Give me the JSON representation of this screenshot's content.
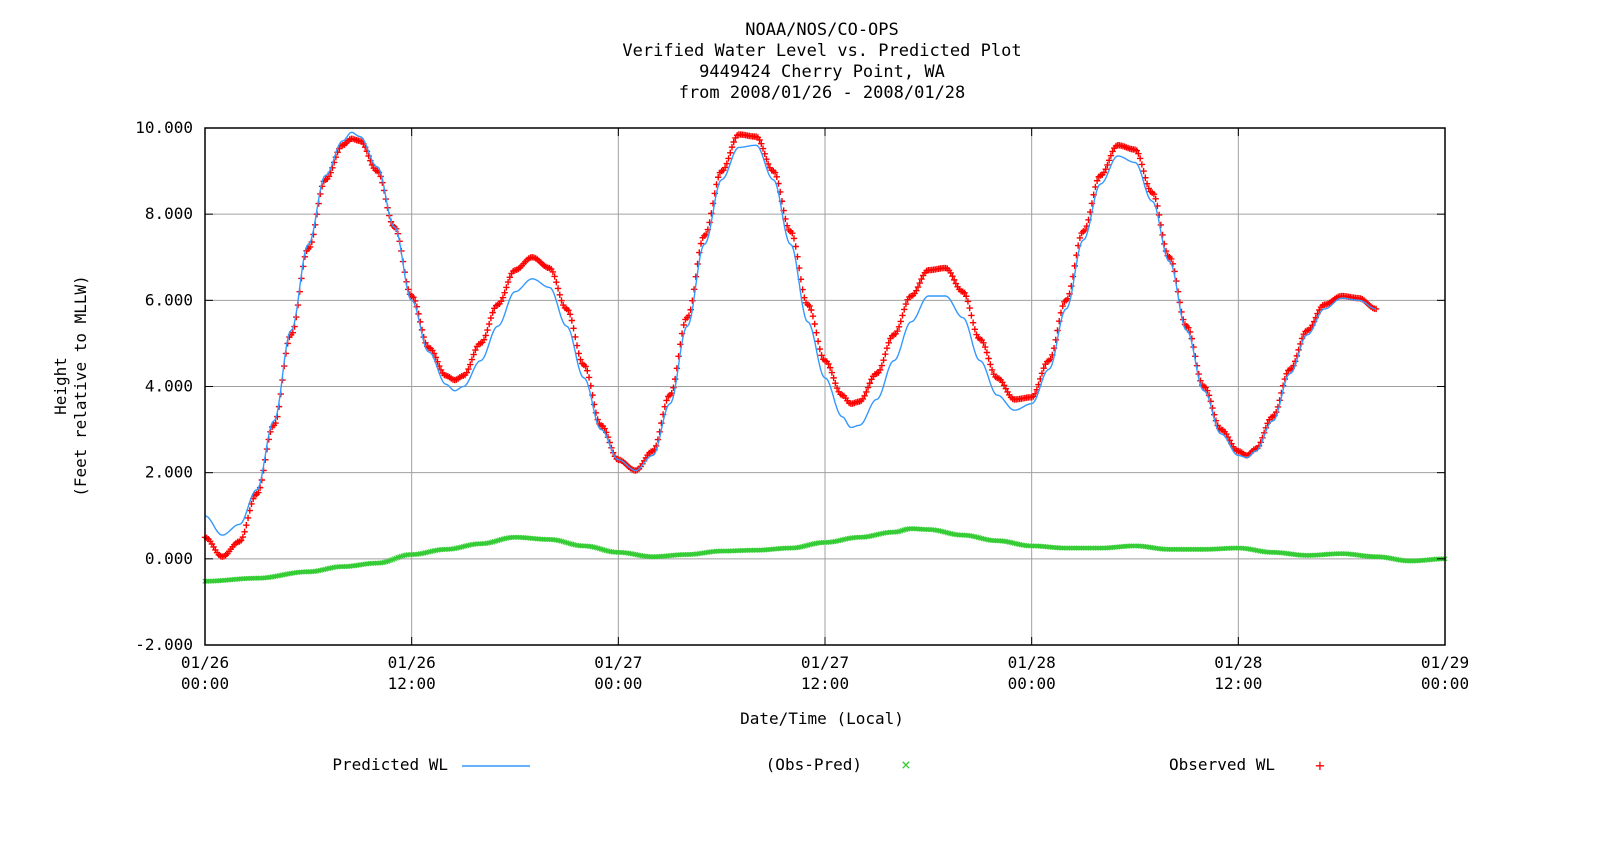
{
  "chart_data": {
    "type": "line",
    "title_lines": [
      "NOAA/NOS/CO-OPS",
      "Verified  Water Level vs. Predicted Plot",
      "9449424 Cherry Point, WA",
      "from 2008/01/26 - 2008/01/28"
    ],
    "ylabel_lines": [
      "Height",
      "(Feet relative to MLLW)"
    ],
    "xlabel": "Date/Time (Local)",
    "ylim": [
      -2,
      10
    ],
    "yticks": [
      -2,
      0,
      2,
      4,
      6,
      8,
      10
    ],
    "ytick_labels": [
      "-2.000",
      "0.000",
      "2.000",
      "4.000",
      "6.000",
      "8.000",
      "10.000"
    ],
    "xlim": [
      "2008-01-26 00:00",
      "2008-01-29 00:00"
    ],
    "xticks": [
      {
        "t": "2008-01-26 00:00",
        "date": "01/26",
        "time": "00:00"
      },
      {
        "t": "2008-01-26 12:00",
        "date": "01/26",
        "time": "12:00"
      },
      {
        "t": "2008-01-27 00:00",
        "date": "01/27",
        "time": "00:00"
      },
      {
        "t": "2008-01-27 12:00",
        "date": "01/27",
        "time": "12:00"
      },
      {
        "t": "2008-01-28 00:00",
        "date": "01/28",
        "time": "00:00"
      },
      {
        "t": "2008-01-28 12:00",
        "date": "01/28",
        "time": "12:00"
      },
      {
        "t": "2008-01-29 00:00",
        "date": "01/29",
        "time": "00:00"
      }
    ],
    "grid": true,
    "legend_position": "bottom",
    "series": [
      {
        "name": "Predicted WL",
        "style": "line",
        "color": "#3399ff",
        "points": [
          [
            "2008-01-26 00:00",
            1.0
          ],
          [
            "2008-01-26 01:00",
            0.55
          ],
          [
            "2008-01-26 02:00",
            0.8
          ],
          [
            "2008-01-26 03:00",
            1.6
          ],
          [
            "2008-01-26 04:00",
            3.2
          ],
          [
            "2008-01-26 05:00",
            5.3
          ],
          [
            "2008-01-26 06:00",
            7.3
          ],
          [
            "2008-01-26 07:00",
            8.9
          ],
          [
            "2008-01-26 08:00",
            9.7
          ],
          [
            "2008-01-26 08:30",
            9.9
          ],
          [
            "2008-01-26 09:00",
            9.8
          ],
          [
            "2008-01-26 10:00",
            9.1
          ],
          [
            "2008-01-26 11:00",
            7.7
          ],
          [
            "2008-01-26 12:00",
            6.0
          ],
          [
            "2008-01-26 13:00",
            4.8
          ],
          [
            "2008-01-26 14:00",
            4.05
          ],
          [
            "2008-01-26 14:30",
            3.9
          ],
          [
            "2008-01-26 15:00",
            4.0
          ],
          [
            "2008-01-26 16:00",
            4.6
          ],
          [
            "2008-01-26 17:00",
            5.4
          ],
          [
            "2008-01-26 18:00",
            6.2
          ],
          [
            "2008-01-26 19:00",
            6.5
          ],
          [
            "2008-01-26 20:00",
            6.3
          ],
          [
            "2008-01-26 21:00",
            5.4
          ],
          [
            "2008-01-26 22:00",
            4.2
          ],
          [
            "2008-01-26 23:00",
            3.0
          ],
          [
            "2008-01-27 00:00",
            2.3
          ],
          [
            "2008-01-27 01:00",
            2.05
          ],
          [
            "2008-01-27 02:00",
            2.4
          ],
          [
            "2008-01-27 03:00",
            3.6
          ],
          [
            "2008-01-27 04:00",
            5.4
          ],
          [
            "2008-01-27 05:00",
            7.3
          ],
          [
            "2008-01-27 06:00",
            8.8
          ],
          [
            "2008-01-27 07:00",
            9.55
          ],
          [
            "2008-01-27 08:00",
            9.6
          ],
          [
            "2008-01-27 09:00",
            8.8
          ],
          [
            "2008-01-27 10:00",
            7.3
          ],
          [
            "2008-01-27 11:00",
            5.5
          ],
          [
            "2008-01-27 12:00",
            4.2
          ],
          [
            "2008-01-27 13:00",
            3.3
          ],
          [
            "2008-01-27 13:30",
            3.05
          ],
          [
            "2008-01-27 14:00",
            3.1
          ],
          [
            "2008-01-27 15:00",
            3.7
          ],
          [
            "2008-01-27 16:00",
            4.6
          ],
          [
            "2008-01-27 17:00",
            5.5
          ],
          [
            "2008-01-27 18:00",
            6.1
          ],
          [
            "2008-01-27 19:00",
            6.1
          ],
          [
            "2008-01-27 20:00",
            5.6
          ],
          [
            "2008-01-27 21:00",
            4.6
          ],
          [
            "2008-01-27 22:00",
            3.8
          ],
          [
            "2008-01-27 23:00",
            3.45
          ],
          [
            "2008-01-28 00:00",
            3.6
          ],
          [
            "2008-01-28 01:00",
            4.4
          ],
          [
            "2008-01-28 02:00",
            5.8
          ],
          [
            "2008-01-28 03:00",
            7.4
          ],
          [
            "2008-01-28 04:00",
            8.7
          ],
          [
            "2008-01-28 05:00",
            9.35
          ],
          [
            "2008-01-28 06:00",
            9.2
          ],
          [
            "2008-01-28 07:00",
            8.3
          ],
          [
            "2008-01-28 08:00",
            6.9
          ],
          [
            "2008-01-28 09:00",
            5.3
          ],
          [
            "2008-01-28 10:00",
            3.9
          ],
          [
            "2008-01-28 11:00",
            2.9
          ],
          [
            "2008-01-28 12:00",
            2.4
          ],
          [
            "2008-01-28 12:30",
            2.35
          ],
          [
            "2008-01-28 13:00",
            2.5
          ],
          [
            "2008-01-28 14:00",
            3.2
          ],
          [
            "2008-01-28 15:00",
            4.3
          ],
          [
            "2008-01-28 16:00",
            5.2
          ],
          [
            "2008-01-28 17:00",
            5.8
          ],
          [
            "2008-01-28 18:00",
            6.05
          ],
          [
            "2008-01-28 19:00",
            6.0
          ],
          [
            "2008-01-28 20:00",
            5.8
          ]
        ]
      },
      {
        "name": "(Obs-Pred)",
        "style": "x",
        "color": "#33cc33",
        "points": [
          [
            "2008-01-26 00:00",
            -0.52
          ],
          [
            "2008-01-26 03:00",
            -0.45
          ],
          [
            "2008-01-26 06:00",
            -0.3
          ],
          [
            "2008-01-26 08:00",
            -0.18
          ],
          [
            "2008-01-26 10:00",
            -0.1
          ],
          [
            "2008-01-26 12:00",
            0.1
          ],
          [
            "2008-01-26 14:00",
            0.22
          ],
          [
            "2008-01-26 16:00",
            0.35
          ],
          [
            "2008-01-26 18:00",
            0.5
          ],
          [
            "2008-01-26 20:00",
            0.45
          ],
          [
            "2008-01-26 22:00",
            0.3
          ],
          [
            "2008-01-27 00:00",
            0.15
          ],
          [
            "2008-01-27 02:00",
            0.05
          ],
          [
            "2008-01-27 04:00",
            0.1
          ],
          [
            "2008-01-27 06:00",
            0.18
          ],
          [
            "2008-01-27 08:00",
            0.2
          ],
          [
            "2008-01-27 10:00",
            0.25
          ],
          [
            "2008-01-27 12:00",
            0.38
          ],
          [
            "2008-01-27 14:00",
            0.5
          ],
          [
            "2008-01-27 16:00",
            0.62
          ],
          [
            "2008-01-27 17:00",
            0.7
          ],
          [
            "2008-01-27 18:00",
            0.68
          ],
          [
            "2008-01-27 20:00",
            0.55
          ],
          [
            "2008-01-27 22:00",
            0.42
          ],
          [
            "2008-01-28 00:00",
            0.3
          ],
          [
            "2008-01-28 02:00",
            0.25
          ],
          [
            "2008-01-28 04:00",
            0.25
          ],
          [
            "2008-01-28 06:00",
            0.3
          ],
          [
            "2008-01-28 08:00",
            0.22
          ],
          [
            "2008-01-28 10:00",
            0.22
          ],
          [
            "2008-01-28 12:00",
            0.25
          ],
          [
            "2008-01-28 14:00",
            0.15
          ],
          [
            "2008-01-28 16:00",
            0.08
          ],
          [
            "2008-01-28 18:00",
            0.12
          ],
          [
            "2008-01-28 20:00",
            0.05
          ],
          [
            "2008-01-28 22:00",
            -0.05
          ],
          [
            "2008-01-29 00:00",
            0.0
          ]
        ]
      },
      {
        "name": "Observed WL",
        "style": "+",
        "color": "#ff0000",
        "points": [
          [
            "2008-01-26 00:00",
            0.5
          ],
          [
            "2008-01-26 01:00",
            0.05
          ],
          [
            "2008-01-26 02:00",
            0.4
          ],
          [
            "2008-01-26 03:00",
            1.5
          ],
          [
            "2008-01-26 04:00",
            3.1
          ],
          [
            "2008-01-26 05:00",
            5.2
          ],
          [
            "2008-01-26 06:00",
            7.2
          ],
          [
            "2008-01-26 07:00",
            8.8
          ],
          [
            "2008-01-26 08:00",
            9.6
          ],
          [
            "2008-01-26 08:30",
            9.75
          ],
          [
            "2008-01-26 09:00",
            9.7
          ],
          [
            "2008-01-26 10:00",
            9.0
          ],
          [
            "2008-01-26 11:00",
            7.7
          ],
          [
            "2008-01-26 12:00",
            6.1
          ],
          [
            "2008-01-26 13:00",
            4.9
          ],
          [
            "2008-01-26 14:00",
            4.25
          ],
          [
            "2008-01-26 14:30",
            4.15
          ],
          [
            "2008-01-26 15:00",
            4.25
          ],
          [
            "2008-01-26 16:00",
            5.0
          ],
          [
            "2008-01-26 17:00",
            5.9
          ],
          [
            "2008-01-26 18:00",
            6.7
          ],
          [
            "2008-01-26 19:00",
            7.0
          ],
          [
            "2008-01-26 20:00",
            6.75
          ],
          [
            "2008-01-26 21:00",
            5.8
          ],
          [
            "2008-01-26 22:00",
            4.5
          ],
          [
            "2008-01-26 23:00",
            3.1
          ],
          [
            "2008-01-27 00:00",
            2.3
          ],
          [
            "2008-01-27 01:00",
            2.05
          ],
          [
            "2008-01-27 02:00",
            2.5
          ],
          [
            "2008-01-27 03:00",
            3.8
          ],
          [
            "2008-01-27 04:00",
            5.6
          ],
          [
            "2008-01-27 05:00",
            7.5
          ],
          [
            "2008-01-27 06:00",
            9.0
          ],
          [
            "2008-01-27 07:00",
            9.85
          ],
          [
            "2008-01-27 08:00",
            9.8
          ],
          [
            "2008-01-27 09:00",
            9.0
          ],
          [
            "2008-01-27 10:00",
            7.6
          ],
          [
            "2008-01-27 11:00",
            5.9
          ],
          [
            "2008-01-27 12:00",
            4.6
          ],
          [
            "2008-01-27 13:00",
            3.8
          ],
          [
            "2008-01-27 13:30",
            3.6
          ],
          [
            "2008-01-27 14:00",
            3.65
          ],
          [
            "2008-01-27 15:00",
            4.3
          ],
          [
            "2008-01-27 16:00",
            5.2
          ],
          [
            "2008-01-27 17:00",
            6.1
          ],
          [
            "2008-01-27 18:00",
            6.7
          ],
          [
            "2008-01-27 19:00",
            6.75
          ],
          [
            "2008-01-27 20:00",
            6.2
          ],
          [
            "2008-01-27 21:00",
            5.1
          ],
          [
            "2008-01-27 22:00",
            4.2
          ],
          [
            "2008-01-27 23:00",
            3.7
          ],
          [
            "2008-01-28 00:00",
            3.75
          ],
          [
            "2008-01-28 01:00",
            4.6
          ],
          [
            "2008-01-28 02:00",
            6.0
          ],
          [
            "2008-01-28 03:00",
            7.6
          ],
          [
            "2008-01-28 04:00",
            8.9
          ],
          [
            "2008-01-28 05:00",
            9.6
          ],
          [
            "2008-01-28 06:00",
            9.5
          ],
          [
            "2008-01-28 07:00",
            8.5
          ],
          [
            "2008-01-28 08:00",
            7.0
          ],
          [
            "2008-01-28 09:00",
            5.4
          ],
          [
            "2008-01-28 10:00",
            4.0
          ],
          [
            "2008-01-28 11:00",
            3.0
          ],
          [
            "2008-01-28 12:00",
            2.5
          ],
          [
            "2008-01-28 12:30",
            2.4
          ],
          [
            "2008-01-28 13:00",
            2.55
          ],
          [
            "2008-01-28 14:00",
            3.3
          ],
          [
            "2008-01-28 15:00",
            4.4
          ],
          [
            "2008-01-28 16:00",
            5.3
          ],
          [
            "2008-01-28 17:00",
            5.9
          ],
          [
            "2008-01-28 18:00",
            6.1
          ],
          [
            "2008-01-28 19:00",
            6.05
          ],
          [
            "2008-01-28 20:00",
            5.8
          ]
        ]
      }
    ]
  },
  "legend": {
    "predicted_label": "Predicted WL",
    "residual_label": "(Obs-Pred)",
    "residual_marker": "×",
    "observed_label": "Observed WL",
    "observed_marker": "+"
  }
}
